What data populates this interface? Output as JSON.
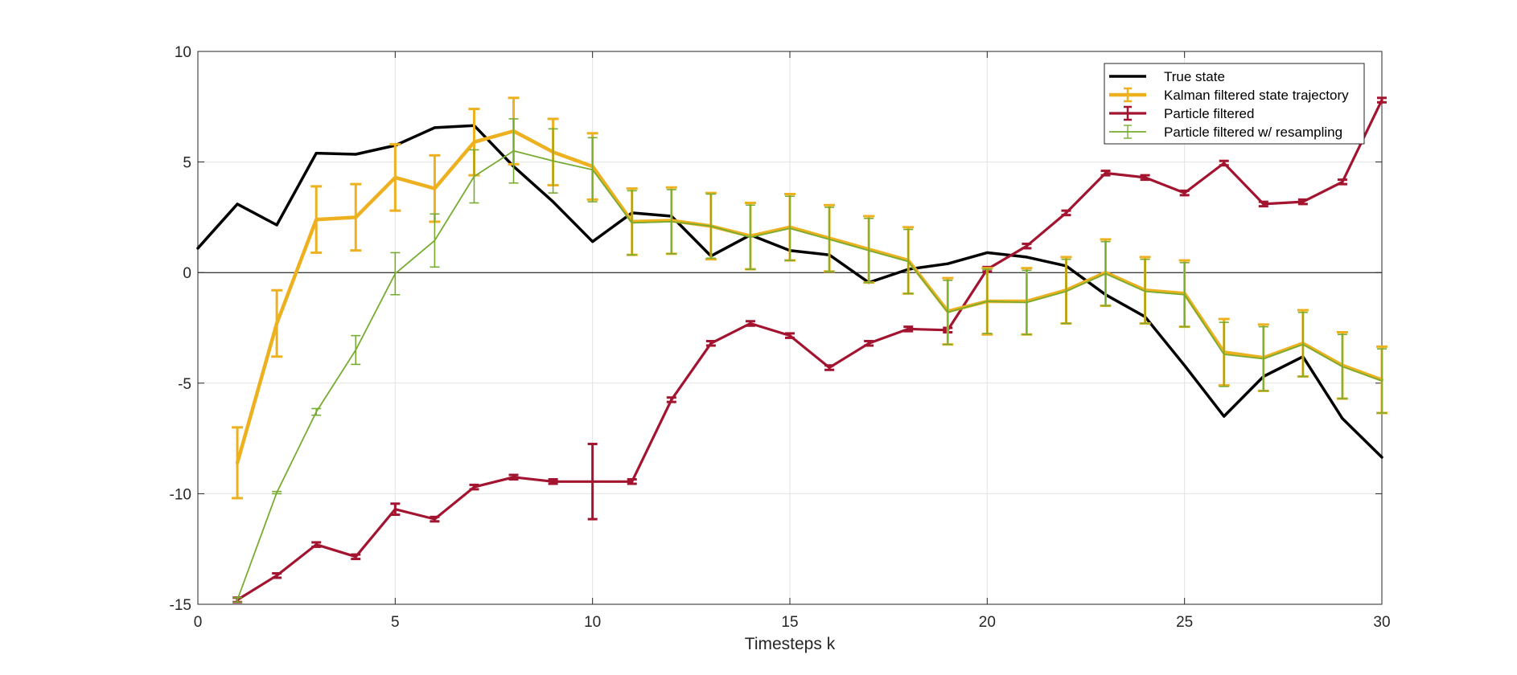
{
  "chart_data": {
    "type": "line",
    "title": "",
    "xlabel": "Timesteps k",
    "ylabel": "",
    "xlim": [
      0,
      30
    ],
    "ylim": [
      -15,
      10
    ],
    "xticks": [
      0,
      5,
      10,
      15,
      20,
      25,
      30
    ],
    "yticks": [
      -15,
      -10,
      -5,
      0,
      5,
      10
    ],
    "xtick_labels": [
      "0",
      "5",
      "10",
      "15",
      "20",
      "25",
      "30"
    ],
    "ytick_labels": [
      "-15",
      "-10",
      "-5",
      "0",
      "5",
      "10"
    ],
    "grid": true,
    "zero_line": true,
    "legend_position": "top-right",
    "series": [
      {
        "name": "True state",
        "color": "#000000",
        "error_bars": false,
        "x": [
          0,
          1,
          2,
          3,
          4,
          5,
          6,
          7,
          8,
          9,
          10,
          11,
          12,
          13,
          14,
          15,
          16,
          17,
          18,
          19,
          20,
          21,
          22,
          23,
          24,
          25,
          26,
          27,
          28,
          29,
          30
        ],
        "y": [
          1.1,
          3.1,
          2.15,
          5.4,
          5.35,
          5.75,
          6.55,
          6.65,
          4.8,
          3.2,
          1.4,
          2.7,
          2.55,
          0.75,
          1.7,
          1.0,
          0.8,
          -0.45,
          0.15,
          0.4,
          0.9,
          0.7,
          0.3,
          -1.0,
          -2.0,
          -4.2,
          -6.5,
          -4.7,
          -3.8,
          -6.6,
          -8.35
        ]
      },
      {
        "name": "Kalman filtered state trajectory",
        "color": "#EDB120",
        "error_bars": true,
        "x": [
          1,
          2,
          3,
          4,
          5,
          6,
          7,
          8,
          9,
          10,
          11,
          12,
          13,
          14,
          15,
          16,
          17,
          18,
          19,
          20,
          21,
          22,
          23,
          24,
          25,
          26,
          27,
          28,
          29,
          30
        ],
        "y": [
          -8.6,
          -2.3,
          2.4,
          2.5,
          4.3,
          3.8,
          5.9,
          6.4,
          5.45,
          4.8,
          2.3,
          2.35,
          2.1,
          1.65,
          2.05,
          1.55,
          1.05,
          0.55,
          -1.75,
          -1.3,
          -1.3,
          -0.8,
          0.0,
          -0.8,
          -0.95,
          -3.6,
          -3.85,
          -3.2,
          -4.2,
          -4.85
        ],
        "err": [
          1.6,
          1.5,
          1.5,
          1.5,
          1.5,
          1.5,
          1.5,
          1.5,
          1.5,
          1.5,
          1.5,
          1.5,
          1.5,
          1.5,
          1.5,
          1.5,
          1.5,
          1.5,
          1.5,
          1.5,
          1.5,
          1.5,
          1.5,
          1.5,
          1.5,
          1.5,
          1.5,
          1.5,
          1.5,
          1.5
        ]
      },
      {
        "name": "Particle filtered",
        "color": "#A2142F",
        "error_bars": true,
        "x": [
          1,
          2,
          3,
          4,
          5,
          6,
          7,
          8,
          9,
          10,
          11,
          12,
          13,
          14,
          15,
          16,
          17,
          18,
          19,
          20,
          21,
          22,
          23,
          24,
          25,
          26,
          27,
          28,
          29,
          30
        ],
        "y": [
          -14.8,
          -13.7,
          -12.3,
          -12.85,
          -10.7,
          -11.15,
          -9.7,
          -9.25,
          -9.45,
          -9.45,
          -9.45,
          -5.75,
          -3.2,
          -2.3,
          -2.85,
          -4.3,
          -3.2,
          -2.55,
          -2.6,
          0.15,
          1.2,
          2.7,
          4.5,
          4.3,
          3.6,
          4.95,
          3.1,
          3.2,
          4.1,
          7.8
        ],
        "err": [
          0.1,
          0.1,
          0.1,
          0.1,
          0.25,
          0.1,
          0.1,
          0.1,
          0.1,
          1.7,
          0.1,
          0.1,
          0.1,
          0.1,
          0.1,
          0.1,
          0.1,
          0.1,
          0.1,
          0.1,
          0.1,
          0.1,
          0.1,
          0.1,
          0.1,
          0.1,
          0.1,
          0.1,
          0.1,
          0.1
        ]
      },
      {
        "name": "Particle filtered w/ resampling",
        "color": "#77AC30",
        "error_bars": true,
        "x": [
          1,
          2,
          3,
          4,
          5,
          6,
          7,
          8,
          9,
          10,
          11,
          12,
          13,
          14,
          15,
          16,
          17,
          18,
          19,
          20,
          21,
          22,
          23,
          24,
          25,
          26,
          27,
          28,
          29,
          30
        ],
        "y": [
          -14.8,
          -9.95,
          -6.3,
          -3.5,
          -0.05,
          1.45,
          4.35,
          5.5,
          5.05,
          4.65,
          2.25,
          2.3,
          2.1,
          1.6,
          2.0,
          1.5,
          1.0,
          0.5,
          -1.8,
          -1.3,
          -1.35,
          -0.85,
          -0.05,
          -0.85,
          -1.0,
          -3.7,
          -3.9,
          -3.25,
          -4.25,
          -4.9
        ],
        "err": [
          0.1,
          0.05,
          0.15,
          0.65,
          0.95,
          1.2,
          1.2,
          1.45,
          1.45,
          1.45,
          1.45,
          1.45,
          1.45,
          1.45,
          1.45,
          1.45,
          1.45,
          1.45,
          1.45,
          1.45,
          1.45,
          1.45,
          1.45,
          1.45,
          1.45,
          1.45,
          1.45,
          1.45,
          1.45,
          1.45
        ]
      }
    ]
  }
}
